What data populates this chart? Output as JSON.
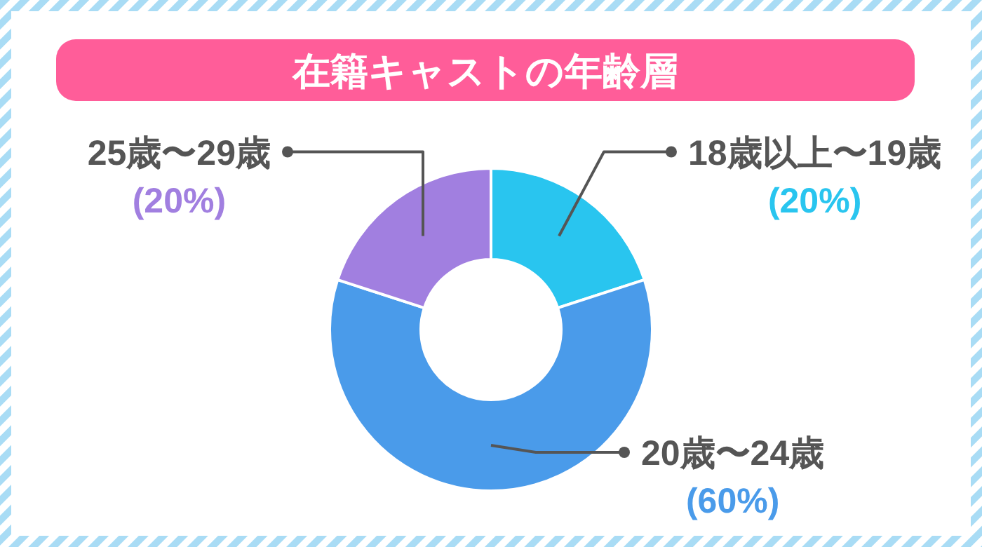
{
  "chart_data": {
    "type": "donut",
    "title": "在籍キャストの年齢層",
    "categories": [
      "18歳以上〜19歳",
      "20歳〜24歳",
      "25歳〜29歳"
    ],
    "values": [
      20,
      60,
      20
    ],
    "colors": [
      "#29c5ef",
      "#4a9bea",
      "#a17fe0"
    ],
    "value_labels": [
      "(20%)",
      "(60%)",
      "(20%)"
    ],
    "legend": false
  }
}
